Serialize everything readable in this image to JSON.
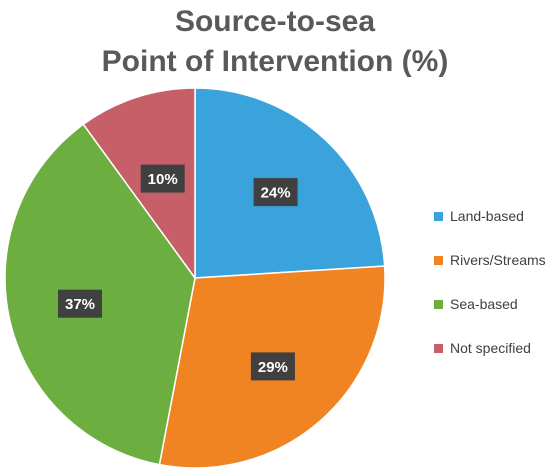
{
  "chart_data": {
    "type": "pie",
    "title": [
      "Source-to-sea",
      "Point of Intervention (%)"
    ],
    "categories": [
      "Land-based",
      "Rivers/Streams",
      "Sea-based",
      "Not specified"
    ],
    "values": [
      24,
      29,
      37,
      10
    ],
    "data_labels": [
      "24%",
      "29%",
      "37%",
      "10%"
    ],
    "colors": [
      "#3ba3dc",
      "#f08423",
      "#6cae3f",
      "#c75f69"
    ],
    "legend_position": "right",
    "start_angle": "12 o'clock, clockwise"
  }
}
